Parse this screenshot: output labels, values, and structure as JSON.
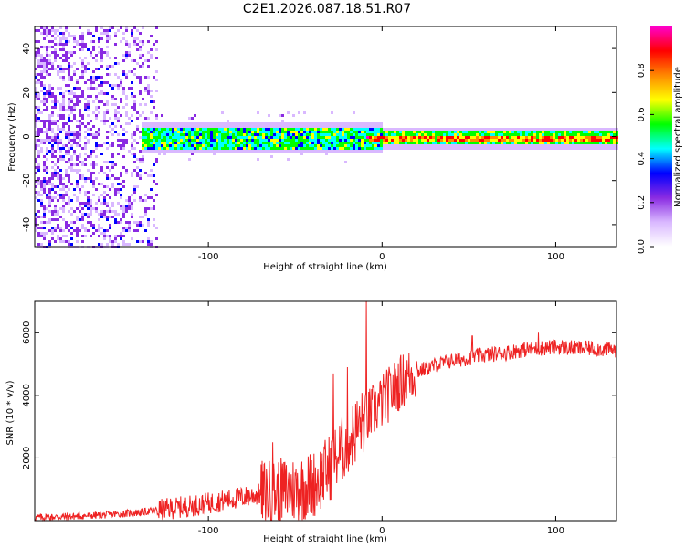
{
  "title": "C2E1.2026.087.18.51.R07",
  "chart_data": [
    {
      "type": "heatmap",
      "name": "spectrogram",
      "xlabel": "Height of straight line (km)",
      "ylabel": "Frequency (Hz)",
      "xlim": [
        -200,
        135
      ],
      "ylim": [
        -50,
        50
      ],
      "xticks": [
        -100,
        0,
        100
      ],
      "xtick_labels": [
        "-100",
        "0",
        "100"
      ],
      "yticks": [
        -40,
        -20,
        0,
        20,
        40
      ],
      "ytick_labels": [
        "-40",
        "-20",
        "0",
        "20",
        "40"
      ],
      "colorbar": {
        "label": "Normalized spectral amplitude",
        "range": [
          0,
          1
        ],
        "ticks": [
          0.0,
          0.2,
          0.4,
          0.6,
          0.8
        ],
        "tick_labels": [
          "0.0",
          "0.2",
          "0.4",
          "0.6",
          "0.8"
        ],
        "colors": [
          "#ffffff",
          "#d9b8ff",
          "#8a2be2",
          "#0000ff",
          "#00ffff",
          "#00ff00",
          "#ffff00",
          "#ff8800",
          "#ff0000",
          "#ff00cc"
        ]
      },
      "description_band": {
        "center_hz": 0,
        "half_width_hz_left": 5,
        "half_width_hz_right": 3,
        "noisy_region_below_km": -130
      }
    },
    {
      "type": "line",
      "name": "snr",
      "xlabel": "Height of straight line (km)",
      "ylabel": "SNR (10 * v/v)",
      "xlim": [
        -200,
        135
      ],
      "ylim": [
        0,
        7000
      ],
      "xticks": [
        -100,
        0,
        100
      ],
      "xtick_labels": [
        "-100",
        "0",
        "100"
      ],
      "yticks": [
        2000,
        4000,
        6000
      ],
      "ytick_labels": [
        "2000",
        "4000",
        "6000"
      ],
      "color": "#ee2222",
      "series": [
        {
          "name": "SNR",
          "x": [
            -200,
            -180,
            -160,
            -140,
            -120,
            -100,
            -90,
            -80,
            -70,
            -60,
            -50,
            -40,
            -35,
            -30,
            -25,
            -20,
            -15,
            -10,
            -5,
            0,
            5,
            10,
            15,
            20,
            30,
            40,
            50,
            60,
            70,
            80,
            90,
            100,
            110,
            120,
            135
          ],
          "values": [
            100,
            130,
            180,
            260,
            400,
            550,
            650,
            750,
            850,
            900,
            1000,
            1150,
            1400,
            1700,
            2100,
            2500,
            2900,
            3200,
            3500,
            3800,
            4100,
            4400,
            4600,
            4750,
            4950,
            5100,
            5200,
            5300,
            5350,
            5450,
            5500,
            5550,
            5500,
            5500,
            5450
          ]
        }
      ],
      "spikes": [
        {
          "x": -9,
          "value": 7000
        },
        {
          "x": -28,
          "value": 4700
        },
        {
          "x": -20,
          "value": 4900
        },
        {
          "x": -63,
          "value": 2500
        },
        {
          "x": 52,
          "value": 5900
        },
        {
          "x": 90,
          "value": 6000
        }
      ]
    }
  ]
}
